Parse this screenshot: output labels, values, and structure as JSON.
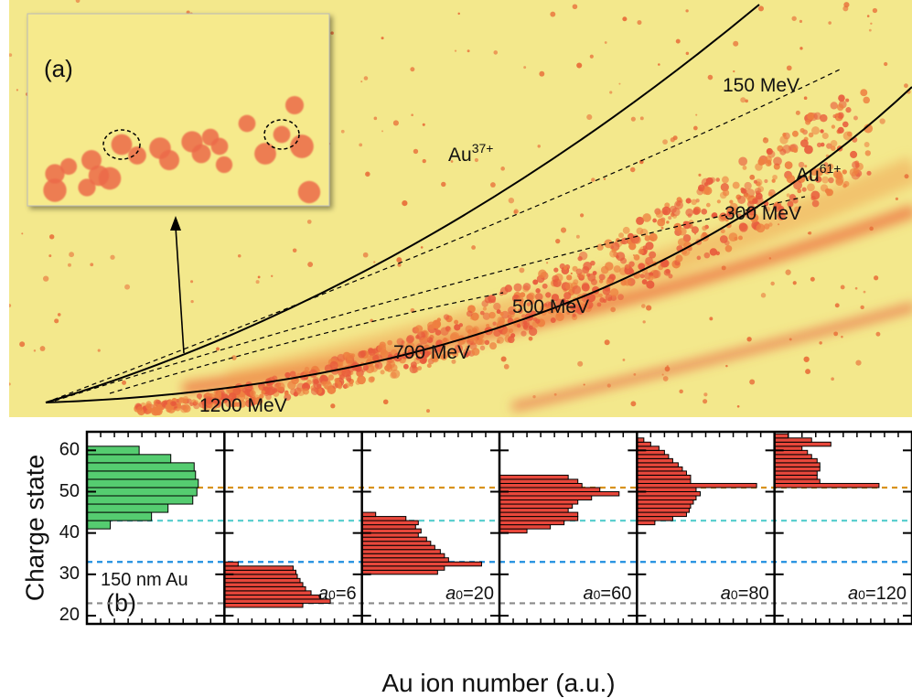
{
  "panel_a": {
    "label": "(a)",
    "energies": [
      "150 MeV",
      "300 MeV",
      "500 MeV",
      "700 MeV",
      "1200 MeV"
    ],
    "ions": [
      {
        "base": "Au",
        "sup": "37+"
      },
      {
        "base": "Au",
        "sup": "61+"
      }
    ]
  },
  "chart_data": {
    "type": "bar",
    "orientation": "horizontal",
    "label": "(b)",
    "ylabel": "Charge state",
    "xlabel": "Au ion number (a.u.)",
    "ylim": [
      18,
      64.5
    ],
    "yticks": [
      20,
      30,
      40,
      50,
      60
    ],
    "reference_lines": [
      {
        "value": 23,
        "color": "#8a8a8a"
      },
      {
        "value": 33,
        "color": "#1f8fe0"
      },
      {
        "value": 43,
        "color": "#5ccfcf"
      },
      {
        "value": 51,
        "color": "#d8921c"
      }
    ],
    "panels": [
      {
        "label": "150 nm Au",
        "color": "#55cc70",
        "xlim": [
          0,
          100
        ],
        "bins": [
          41,
          43,
          45,
          47,
          49,
          51,
          53,
          55,
          57,
          59,
          61
        ],
        "values": [
          17,
          47,
          59,
          77,
          80,
          81,
          79,
          78,
          61,
          38
        ]
      },
      {
        "label": {
          "symbol": "a",
          "subscript": "0",
          "text": "=6"
        },
        "color": "#e8473b",
        "xlim": [
          0,
          100
        ],
        "bins": [
          22,
          23,
          24,
          25,
          26,
          27,
          28,
          29,
          30,
          31,
          32,
          33
        ],
        "values": [
          57,
          77,
          70,
          63,
          59,
          57,
          55,
          53,
          52,
          50,
          10
        ]
      },
      {
        "label": {
          "symbol": "a",
          "subscript": "0",
          "text": "=20"
        },
        "color": "#e8473b",
        "xlim": [
          0,
          100
        ],
        "bins": [
          30,
          31,
          32,
          33,
          34,
          35,
          36,
          37,
          38,
          39,
          40,
          41,
          42,
          43,
          44,
          45
        ],
        "values": [
          55,
          60,
          87,
          63,
          60,
          57,
          53,
          50,
          47,
          41,
          43,
          39,
          41,
          32,
          10
        ]
      },
      {
        "label": {
          "symbol": "a",
          "subscript": "0",
          "text": "=60"
        },
        "color": "#e8473b",
        "xlim": [
          0,
          100
        ],
        "bins": [
          40,
          41,
          42,
          43,
          44,
          45,
          46,
          47,
          48,
          49,
          50,
          51,
          52,
          53,
          54
        ],
        "values": [
          20,
          37,
          47,
          57,
          57,
          50,
          53,
          57,
          67,
          87,
          73,
          60,
          57,
          50
        ]
      },
      {
        "label": {
          "symbol": "a",
          "subscript": "0",
          "text": "=80"
        },
        "color": "#e8473b",
        "xlim": [
          0,
          100
        ],
        "bins": [
          42,
          43,
          44,
          45,
          46,
          47,
          48,
          49,
          50,
          51,
          52,
          53,
          54,
          55,
          56,
          57,
          58,
          59,
          60,
          61,
          62,
          63
        ],
        "values": [
          13,
          26,
          36,
          38,
          39,
          41,
          43,
          46,
          43,
          87,
          39,
          39,
          36,
          33,
          30,
          26,
          23,
          20,
          16,
          10,
          5
        ]
      },
      {
        "label": {
          "symbol": "a",
          "subscript": "0",
          "text": "=120"
        },
        "color": "#e8473b",
        "xlim": [
          0,
          100
        ],
        "bins": [
          51,
          52,
          53,
          54,
          55,
          56,
          57,
          58,
          59,
          60,
          61,
          62,
          63,
          64
        ],
        "values": [
          76,
          33,
          31,
          31,
          33,
          33,
          31,
          27,
          24,
          20,
          41,
          27,
          10
        ]
      }
    ]
  }
}
